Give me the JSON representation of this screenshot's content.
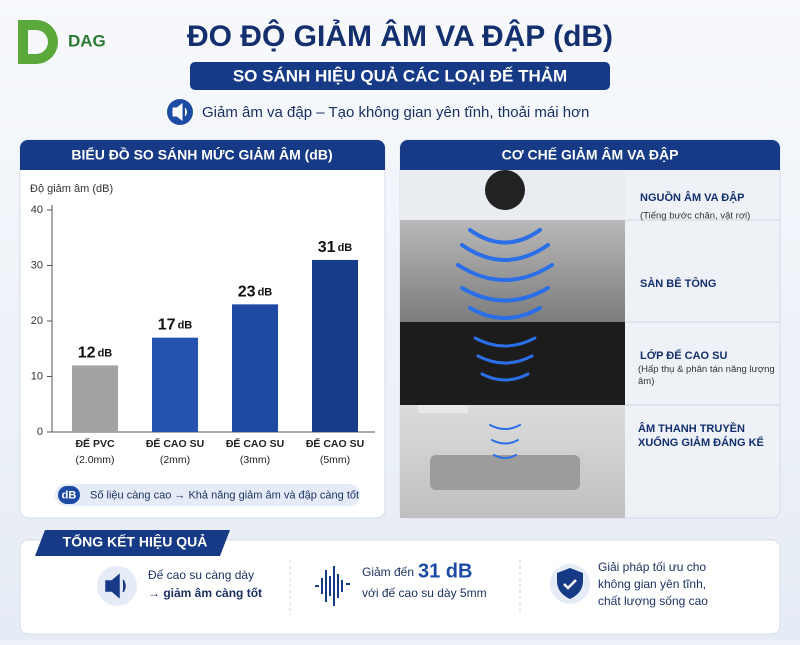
{
  "header": {
    "logo": "DAG",
    "title": "ĐO ĐỘ GIẢM ÂM VA ĐẬP (dB)",
    "subtitle": "SO SÁNH HIỆU QUẢ CÁC LOẠI ĐẾ THẢM",
    "tagline": "Giảm âm va đập – Tạo không gian yên tĩnh, thoải mái hơn"
  },
  "chart_data": {
    "type": "bar",
    "title": "BIỂU ĐỒ SO SÁNH MỨC GIẢM ÂM (dB)",
    "y_label": "Độ giảm âm (dB)",
    "unit": "dB",
    "categories": [
      "ĐẾ PVC",
      "ĐẾ CAO SU",
      "ĐẾ CAO SU",
      "ĐẾ CAO SU"
    ],
    "category_notes": [
      "(2.0mm)",
      "(2mm)",
      "(3mm)",
      "(5mm)"
    ],
    "values": [
      12,
      17,
      23,
      31
    ],
    "colors": [
      "#a3a3a3",
      "#2453b0",
      "#1f4aa3",
      "#173c8c"
    ],
    "ylim": [
      0,
      40
    ],
    "yticks": [
      0,
      10,
      20,
      30,
      40
    ],
    "note_badge": "dB",
    "note": "Số liệu càng cao → Khả năng giảm âm và đập càng tốt"
  },
  "mechanism": {
    "title": "CƠ CHẾ GIẢM ÂM VA ĐẬP",
    "layers": [
      {
        "label": "NGUỒN ÂM VA ĐẬP",
        "detail": "(Tiếng bước chân, vật rơi)"
      },
      {
        "label": "SÀN BÊ TÔNG"
      },
      {
        "label": "LỚP ĐẾ CAO SU",
        "detail": "(Hấp thụ & phân tán năng lượng âm)"
      },
      {
        "label": "ÂM THANH TRUYỀN XUỐNG GIẢM ĐÁNG KỂ"
      }
    ]
  },
  "summary": {
    "title": "TỔNG KẾT HIỆU QUẢ",
    "items": [
      {
        "lines": [
          "Đế cao su càng dày",
          "→ giảm âm càng tốt"
        ]
      },
      {
        "lead": "Giảm đến",
        "highlight": "31 dB",
        "lines": [
          "với đế cao su dày 5mm"
        ]
      },
      {
        "lines": [
          "Giải pháp tối ưu cho",
          "không gian yên tĩnh,",
          "chất lượng sống cao"
        ]
      }
    ]
  }
}
